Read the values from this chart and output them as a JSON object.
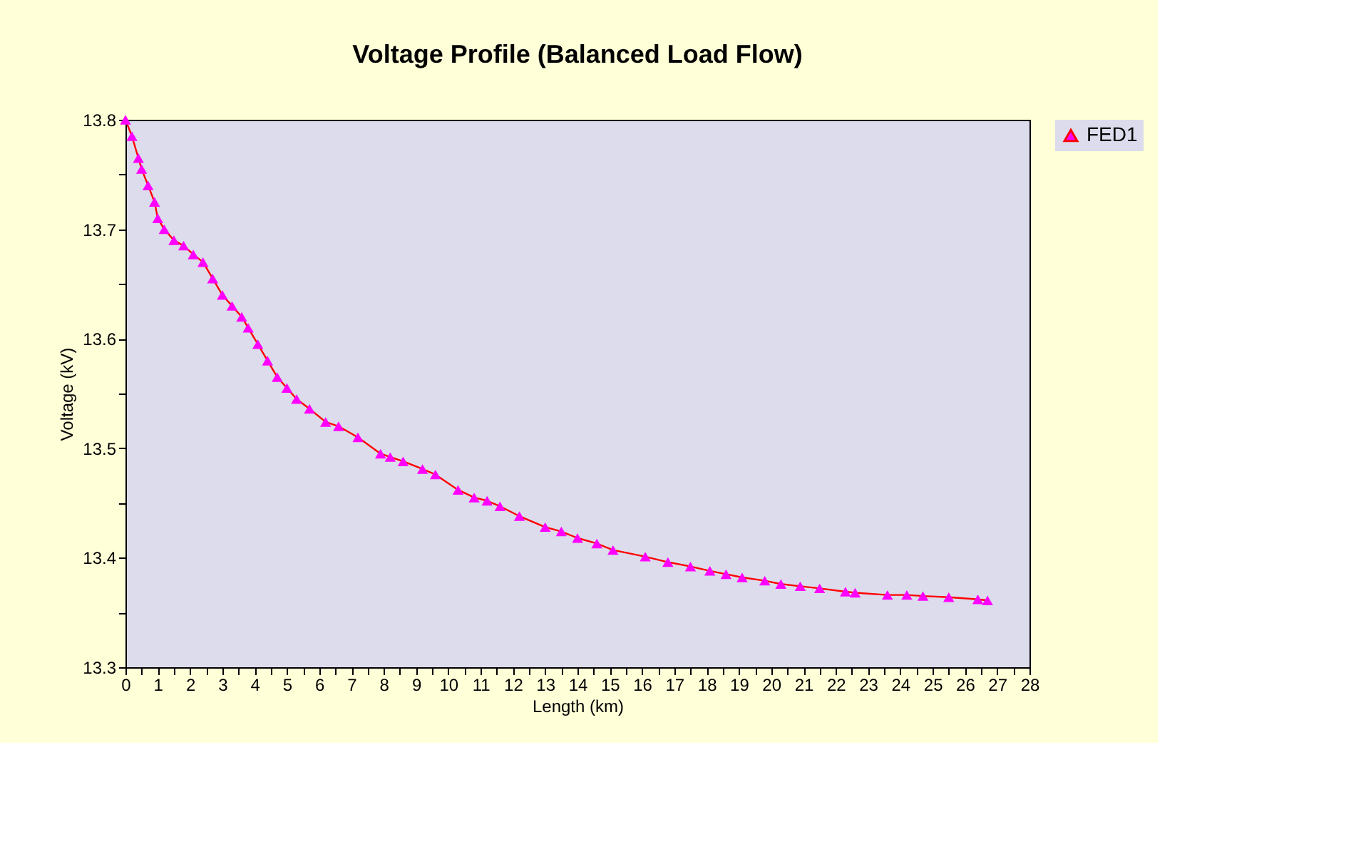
{
  "chart_data": {
    "type": "line",
    "title": "Voltage Profile (Balanced Load Flow)",
    "xlabel": "Length (km)",
    "ylabel": "Voltage (kV)",
    "xlim": [
      0,
      28
    ],
    "ylim": [
      13.3,
      13.8
    ],
    "xticks": [
      0,
      {
        "value": 0.5,
        "label": null
      },
      1,
      {
        "value": 1.5,
        "label": null
      },
      2,
      {
        "value": 2.5,
        "label": null
      },
      3,
      {
        "value": 3.5,
        "label": null
      },
      4,
      {
        "value": 4.5,
        "label": null
      },
      5,
      {
        "value": 5.5,
        "label": null
      },
      6,
      {
        "value": 6.5,
        "label": null
      },
      7,
      {
        "value": 7.5,
        "label": null
      },
      8,
      {
        "value": 8.5,
        "label": null
      },
      9,
      {
        "value": 9.5,
        "label": null
      },
      10,
      {
        "value": 10.5,
        "label": null
      },
      11,
      {
        "value": 11.5,
        "label": null
      },
      12,
      {
        "value": 12.5,
        "label": null
      },
      13,
      {
        "value": 13.5,
        "label": null
      },
      14,
      {
        "value": 14.5,
        "label": null
      },
      15,
      {
        "value": 15.5,
        "label": null
      },
      16,
      {
        "value": 16.5,
        "label": null
      },
      17,
      {
        "value": 17.5,
        "label": null
      },
      18,
      {
        "value": 18.5,
        "label": null
      },
      19,
      {
        "value": 19.5,
        "label": null
      },
      20,
      {
        "value": 20.5,
        "label": null
      },
      21,
      {
        "value": 21.5,
        "label": null
      },
      22,
      {
        "value": 22.5,
        "label": null
      },
      23,
      {
        "value": 23.5,
        "label": null
      },
      24,
      {
        "value": 24.5,
        "label": null
      },
      25,
      {
        "value": 25.5,
        "label": null
      },
      26,
      {
        "value": 26.5,
        "label": null
      },
      27,
      {
        "value": 27.5,
        "label": null
      },
      28
    ],
    "yticks": [
      13.3,
      {
        "value": 13.35,
        "label": null
      },
      13.4,
      {
        "value": 13.45,
        "label": null
      },
      13.5,
      {
        "value": 13.55,
        "label": null
      },
      13.6,
      {
        "value": 13.65,
        "label": null
      },
      13.7,
      {
        "value": 13.75,
        "label": null
      },
      13.8
    ],
    "x": [
      0,
      0.2,
      0.4,
      0.5,
      0.7,
      0.9,
      1.0,
      1.2,
      1.5,
      1.8,
      2.1,
      2.4,
      2.7,
      3.0,
      3.3,
      3.6,
      3.8,
      4.1,
      4.4,
      4.7,
      5.0,
      5.3,
      5.7,
      6.2,
      6.6,
      7.2,
      7.9,
      8.2,
      8.6,
      9.2,
      9.6,
      10.3,
      10.8,
      11.2,
      11.6,
      12.2,
      13.0,
      13.5,
      14.0,
      14.6,
      15.1,
      16.1,
      16.8,
      17.5,
      18.1,
      18.6,
      19.1,
      19.8,
      20.3,
      20.9,
      21.5,
      22.3,
      22.6,
      23.6,
      24.2,
      24.7,
      25.5,
      26.4,
      26.7
    ],
    "series": [
      {
        "name": "FED1",
        "color": "#ff00ff",
        "values": [
          13.8,
          13.785,
          13.765,
          13.755,
          13.74,
          13.725,
          13.71,
          13.7,
          13.69,
          13.685,
          13.677,
          13.67,
          13.655,
          13.64,
          13.63,
          13.62,
          13.61,
          13.595,
          13.58,
          13.565,
          13.555,
          13.545,
          13.536,
          13.524,
          13.52,
          13.51,
          13.495,
          13.492,
          13.488,
          13.481,
          13.476,
          13.462,
          13.455,
          13.452,
          13.447,
          13.438,
          13.428,
          13.424,
          13.418,
          13.413,
          13.407,
          13.401,
          13.396,
          13.392,
          13.388,
          13.385,
          13.382,
          13.379,
          13.376,
          13.374,
          13.372,
          13.369,
          13.368,
          13.366,
          13.366,
          13.365,
          13.364,
          13.362,
          13.361
        ]
      }
    ],
    "marker": "triangle",
    "line_style": "solid",
    "legend": "right",
    "grid": false
  }
}
